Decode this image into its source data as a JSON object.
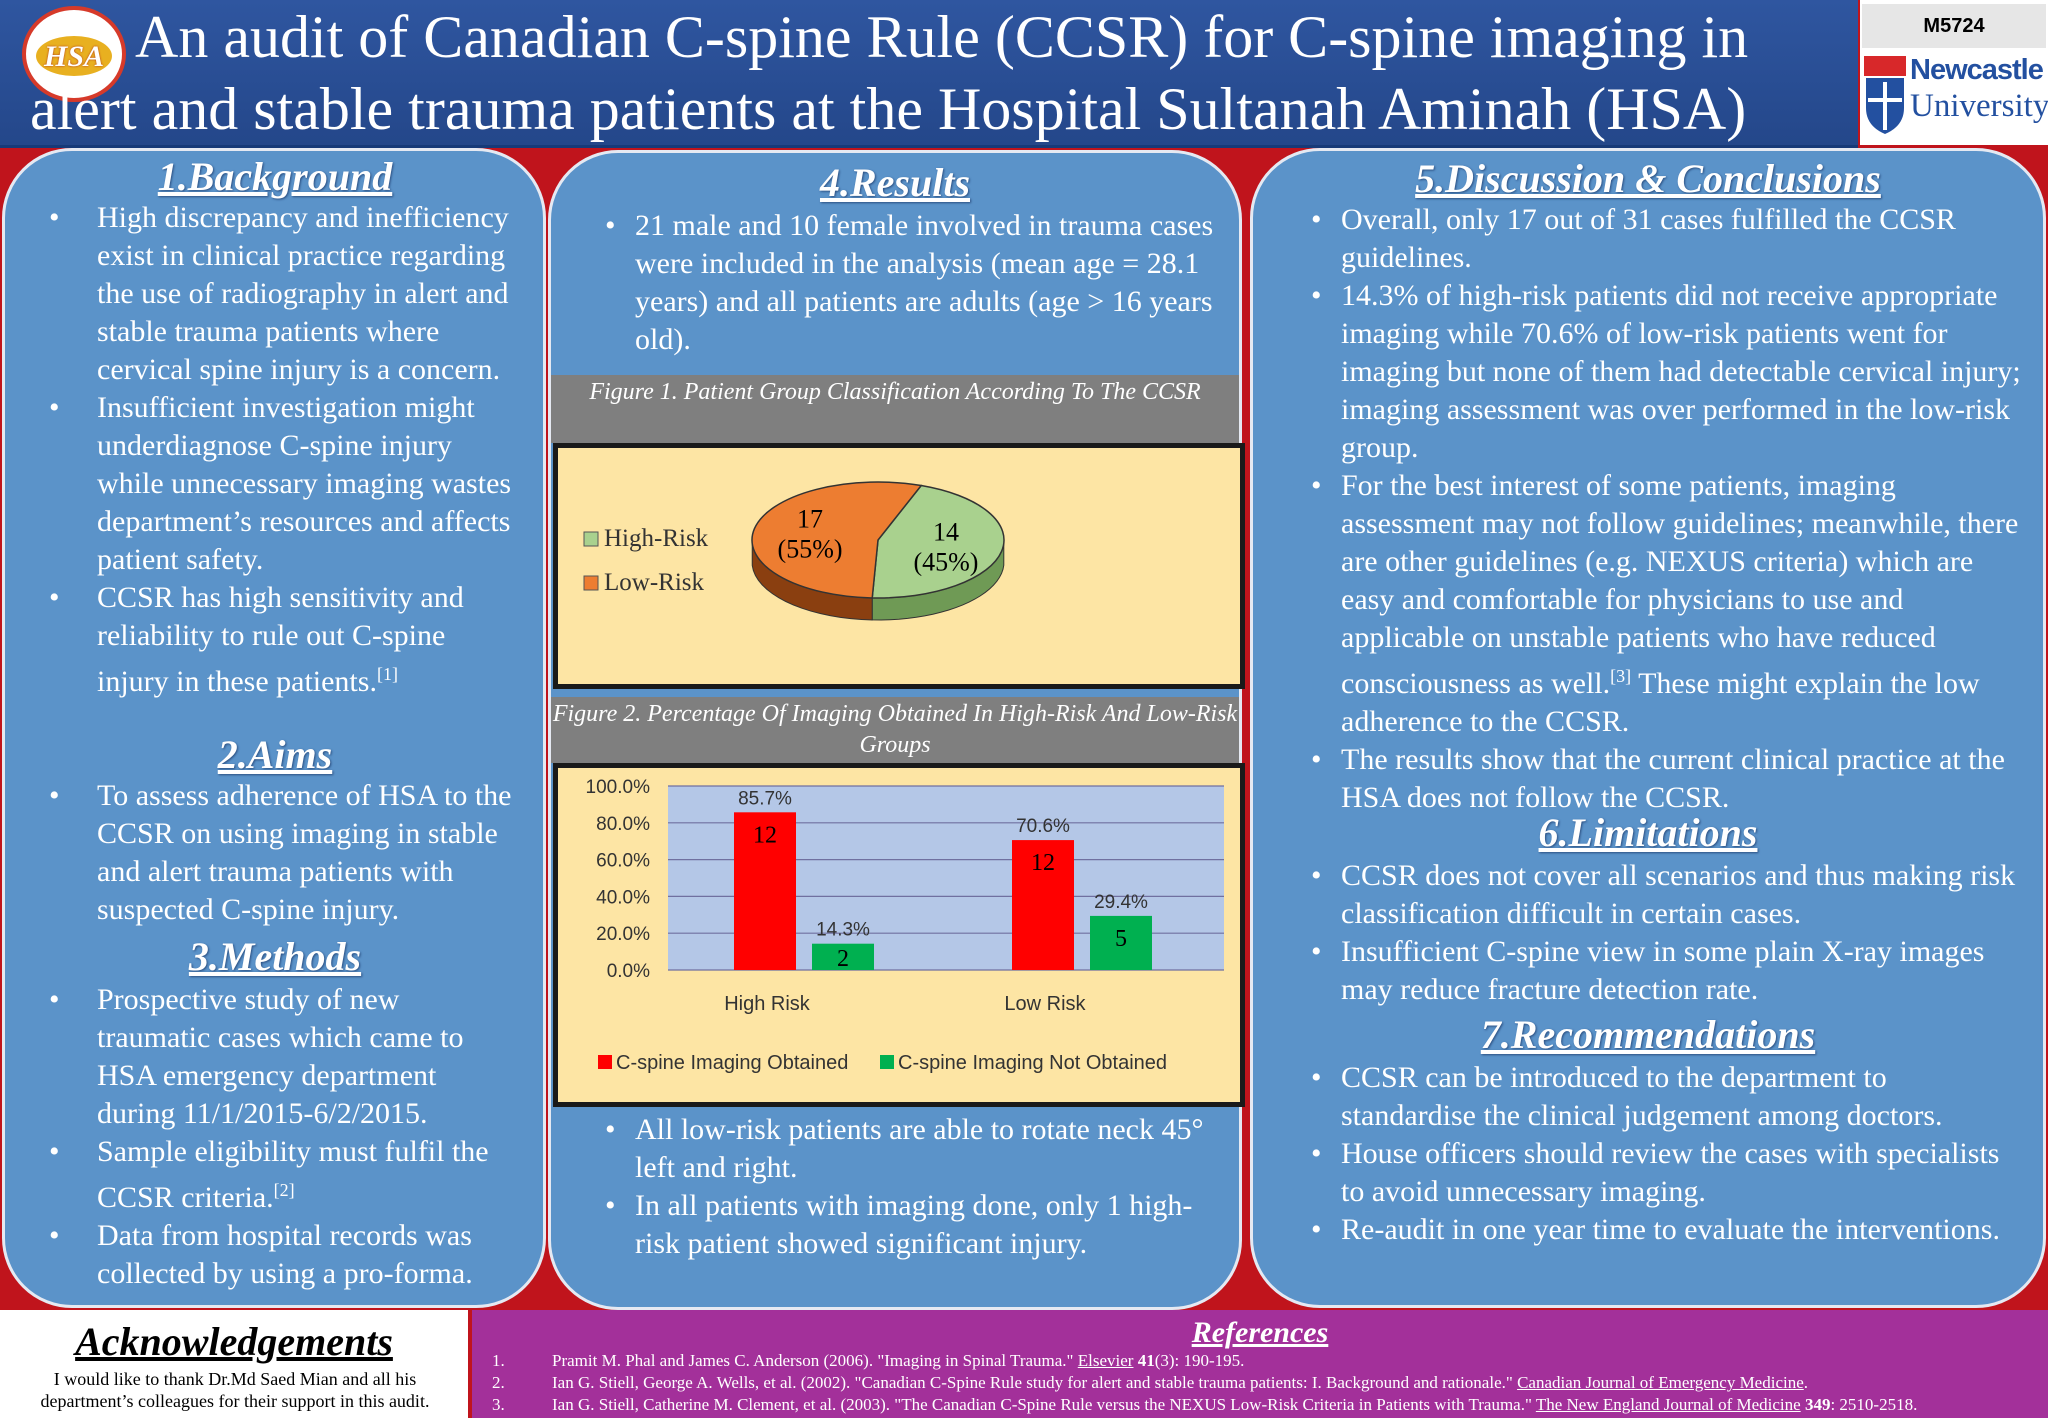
{
  "header": {
    "title_line1": "An audit of Canadian C-spine Rule (CCSR) for C-spine imaging in",
    "title_line2": "alert and stable trauma patients at the Hospital Sultanah Aminah (HSA)",
    "hsa_logo_text": "HSA",
    "poster_code": "M5724",
    "university_line1": "Newcastle",
    "university_line2": "University"
  },
  "background": {
    "title": "1.Background",
    "bullets": [
      "High discrepancy and inefficiency exist in clinical practice regarding the use of radiography in alert and stable trauma patients where cervical spine injury is a concern.",
      "Insufficient investigation might underdiagnose C-spine injury while unnecessary imaging wastes department’s resources and affects patient safety.",
      "CCSR has high sensitivity and reliability to rule out C-spine injury in these patients."
    ],
    "ref_mark": "[1]"
  },
  "aims": {
    "title": "2.Aims",
    "bullets": [
      "To assess adherence of HSA to the CCSR on using imaging in stable and alert trauma patients with suspected C-spine injury."
    ]
  },
  "methods": {
    "title": "3.Methods",
    "bullets": [
      "Prospective study of new traumatic cases which came to HSA emergency department during 11/1/2015-6/2/2015.",
      "Sample eligibility must fulfil the CCSR criteria.",
      "Data from hospital records was collected by using a pro-forma."
    ],
    "ref_mark": "[2]"
  },
  "results": {
    "title": "4.Results",
    "intro": "21 male and 10 female involved in trauma cases were included in the analysis (mean age = 28.1 years) and all patients are adults (age > 16 years old).",
    "fig1_caption": "Figure 1. Patient Group Classification According To The CCSR",
    "fig2_caption": "Figure 2. Percentage Of Imaging Obtained In High-Risk And Low-Risk Groups",
    "after_bullets": [
      "All low-risk patients are able to rotate neck 45° left and right.",
      "In all patients with imaging done, only 1 high-risk patient showed significant injury."
    ]
  },
  "discussion": {
    "title": "5.Discussion & Conclusions",
    "b1": "Overall, only 17 out of 31 cases fulfilled the CCSR guidelines.",
    "b2": "14.3% of high-risk patients did not receive appropriate imaging while 70.6% of low-risk patients went for imaging but none of them had detectable cervical injury; imaging assessment was over performed in the low-risk group.",
    "b3a": "For the best interest of some patients, imaging assessment may not follow guidelines; meanwhile, there are other guidelines (e.g. NEXUS criteria) which are easy and comfortable for physicians to use and applicable on unstable patients who have reduced consciousness as well.",
    "b3_ref": "[3]",
    "b3b": " These might explain the low adherence to the CCSR.",
    "b4": "The results show that the current clinical practice at the HSA does not follow the CCSR."
  },
  "limitations": {
    "title": "6.Limitations",
    "bullets": [
      "CCSR does not cover all scenarios and thus making risk classification difficult in certain cases.",
      "Insufficient C-spine view in some plain X-ray images may reduce fracture detection rate."
    ]
  },
  "recommendations": {
    "title": "7.Recommendations",
    "bullets": [
      "CCSR can be introduced to the department to standardise the clinical judgement among doctors.",
      "House officers should review the cases with specialists to avoid unnecessary imaging.",
      "Re-audit in one year time to evaluate the interventions."
    ]
  },
  "acknowledgements": {
    "title": "Acknowledgements",
    "text": "I would like to thank Dr.Md Saed Mian and all his department’s colleagues for their support in this audit."
  },
  "references": {
    "title": "References",
    "items": [
      {
        "num": "1.",
        "pre": "Pramit M. Phal and James C. Anderson (2006). \"Imaging in Spinal Trauma.\" ",
        "journal": "Elsevier",
        "vol": " 41",
        "post": "(3): 190-195."
      },
      {
        "num": "2.",
        "pre": "Ian G. Stiell, George A. Wells, et al. (2002). \"Canadian C-Spine Rule study for alert and stable trauma patients: I. Background and rationale.\" ",
        "journal": "Canadian Journal of Emergency Medicine",
        "vol": "",
        "post": "."
      },
      {
        "num": "3.",
        "pre": "Ian G. Stiell, Catherine M. Clement, et al. (2003). \"The Canadian C-Spine Rule versus the NEXUS Low-Risk Criteria in Patients with Trauma.\" ",
        "journal": "The New England Journal of Medicine",
        "vol": " 349",
        "post": ": 2510-2518."
      }
    ]
  },
  "chart_data": [
    {
      "type": "pie",
      "title": "Figure 1. Patient Group Classification According To The CCSR",
      "categories": [
        "High-Risk",
        "Low-Risk"
      ],
      "values": [
        14,
        17
      ],
      "labels": [
        {
          "count": "14",
          "pct": "(45%)"
        },
        {
          "count": "17",
          "pct": "(55%)"
        }
      ],
      "colors": [
        "#a9d18e",
        "#ed7d31"
      ],
      "legend": "left"
    },
    {
      "type": "bar",
      "title": "Figure 2. Percentage Of Imaging Obtained In High-Risk And Low-Risk Groups",
      "categories": [
        "High Risk",
        "Low Risk"
      ],
      "series": [
        {
          "name": "C-spine Imaging Obtained",
          "values": [
            85.7,
            70.6
          ],
          "counts": [
            "12",
            "12"
          ],
          "value_labels": [
            "85.7%",
            "70.6%"
          ],
          "color": "#ff0000"
        },
        {
          "name": "C-spine Imaging Not Obtained",
          "values": [
            14.3,
            29.4
          ],
          "counts": [
            "2",
            "5"
          ],
          "value_labels": [
            "14.3%",
            "29.4%"
          ],
          "color": "#00b050"
        }
      ],
      "ylim": [
        0,
        100
      ],
      "yticks": [
        "0.0%",
        "20.0%",
        "40.0%",
        "60.0%",
        "80.0%",
        "100.0%"
      ],
      "grid": true,
      "legend": "bottom"
    }
  ]
}
